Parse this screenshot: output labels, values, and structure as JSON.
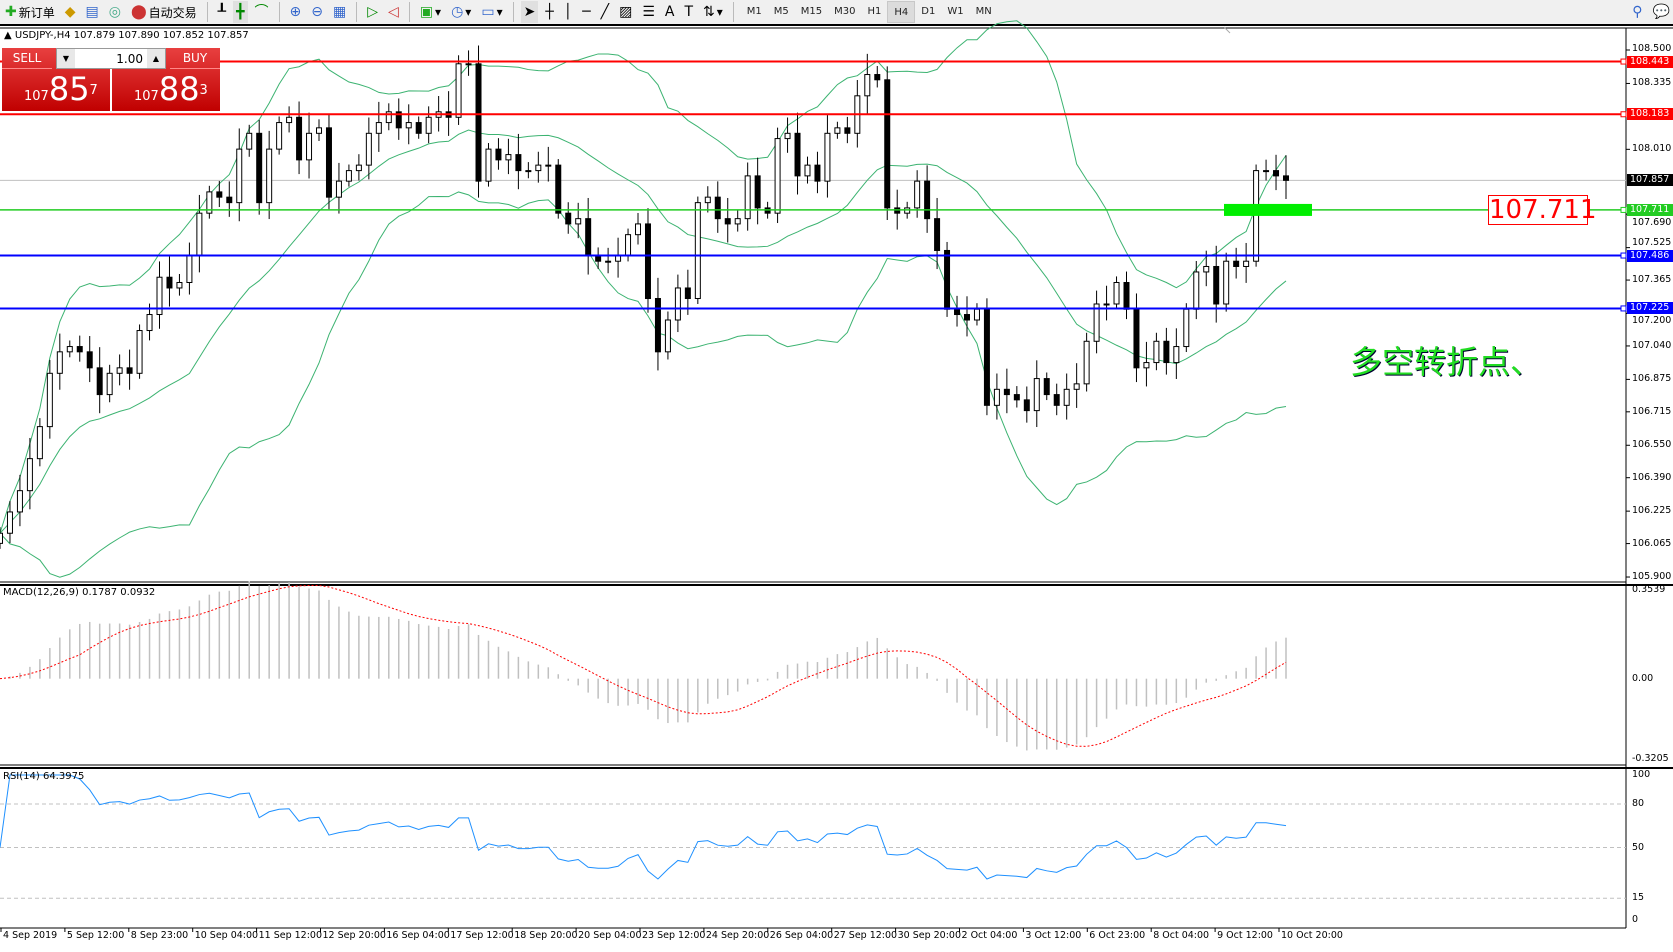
{
  "toolbar": {
    "new_order": "新订单",
    "auto_trading": "自动交易",
    "icons": [
      "new-order-icon",
      "market-watch-icon",
      "navigator-icon",
      "signals-icon",
      "auto-trading-icon",
      "bar-chart-icon",
      "candlestick-icon",
      "line-chart-icon",
      "zoom-in-icon",
      "zoom-out-icon",
      "tile-windows-icon",
      "chart-shift-icon",
      "autoscroll-icon",
      "indicators-icon",
      "periods-icon",
      "templates-icon",
      "cursor-icon",
      "crosshair-icon",
      "vertical-line-icon",
      "horizontal-line-icon",
      "trendline-icon",
      "equidistant-channel-icon",
      "fibonacci-icon",
      "text-icon",
      "text-label-icon",
      "arrows-icon"
    ],
    "timeframes": [
      "M1",
      "M5",
      "M15",
      "M30",
      "H1",
      "H4",
      "D1",
      "W1",
      "MN"
    ],
    "active_timeframe": "H4"
  },
  "chart": {
    "header": "USDJPY-,H4  107.879 107.890 107.852 107.857",
    "trade_panel": {
      "sell_label": "SELL",
      "buy_label": "BUY",
      "lot": "1.00",
      "sell_big": "107",
      "sell_main": "85",
      "sell_pip": "7",
      "buy_big": "107",
      "buy_main": "88",
      "buy_pip": "3"
    },
    "price_axis": [
      "108.500",
      "108.335",
      "108.010",
      "107.690",
      "107.525",
      "107.365",
      "107.200",
      "107.040",
      "106.875",
      "106.715",
      "106.550",
      "106.390",
      "106.225",
      "106.065",
      "105.900"
    ],
    "levels": [
      {
        "price": 108.443,
        "label": "108.443",
        "color": "#ff0000"
      },
      {
        "price": 108.183,
        "label": "108.183",
        "color": "#ff0000"
      },
      {
        "price": 107.711,
        "label": "107.711",
        "color": "#22cc22"
      },
      {
        "price": 107.486,
        "label": "107.486",
        "color": "#0000ff"
      },
      {
        "price": 107.225,
        "label": "107.225",
        "color": "#0000ff"
      }
    ],
    "bid": {
      "price": 107.857,
      "label": "107.857"
    },
    "price_box": "107.711",
    "annotation": "多空转折点、",
    "closes": [
      106.116,
      106.221,
      106.326,
      106.484,
      106.642,
      106.905,
      107.011,
      107.037,
      107.011,
      106.932,
      106.8,
      106.905,
      106.932,
      106.905,
      107.116,
      107.195,
      107.379,
      107.326,
      107.353,
      107.484,
      107.695,
      107.8,
      107.774,
      107.747,
      108.011,
      108.089,
      107.747,
      108.011,
      108.142,
      108.168,
      107.958,
      108.089,
      108.116,
      107.774,
      107.853,
      107.905,
      107.932,
      108.089,
      108.142,
      108.195,
      108.116,
      108.142,
      108.089,
      108.168,
      108.195,
      108.168,
      108.432,
      108.432,
      107.853,
      108.011,
      107.958,
      107.984,
      107.905,
      107.905,
      107.932,
      107.932,
      107.695,
      107.642,
      107.668,
      107.484,
      107.458,
      107.458,
      107.484,
      107.589,
      107.642,
      107.274,
      107.011,
      107.168,
      107.326,
      107.274,
      107.747,
      107.774,
      107.668,
      107.642,
      107.668,
      107.879,
      107.721,
      107.695,
      108.063,
      108.089,
      107.879,
      107.932,
      107.853,
      108.089,
      108.116,
      108.089,
      108.274,
      108.379,
      108.353,
      107.721,
      107.695,
      107.721,
      107.853,
      107.668,
      107.511,
      107.221,
      107.195,
      107.168,
      107.221,
      106.747,
      106.826,
      106.8,
      106.774,
      106.721,
      106.879,
      106.8,
      106.747,
      106.826,
      106.853,
      107.063,
      107.247,
      107.247,
      107.353,
      107.221,
      106.932,
      106.958,
      107.063,
      106.958,
      107.037,
      107.221,
      107.405,
      107.432,
      107.247,
      107.458,
      107.432,
      107.458,
      107.905,
      107.905,
      107.879,
      107.857
    ],
    "time_axis": [
      "4 Sep 2019",
      "5 Sep 12:00",
      "8 Sep 23:00",
      "10 Sep 04:00",
      "11 Sep 12:00",
      "12 Sep 20:00",
      "16 Sep 04:00",
      "17 Sep 12:00",
      "18 Sep 20:00",
      "20 Sep 04:00",
      "23 Sep 12:00",
      "24 Sep 20:00",
      "26 Sep 04:00",
      "27 Sep 12:00",
      "30 Sep 20:00",
      "2 Oct 04:00",
      "3 Oct 12:00",
      "6 Oct 23:00",
      "8 Oct 04:00",
      "9 Oct 12:00",
      "10 Oct 20:00"
    ]
  },
  "macd": {
    "label": "MACD(12,26,9) 0.1787 0.0932",
    "axis": [
      "0.3539",
      "0.00",
      "-0.3205"
    ],
    "range": [
      -0.3205,
      0.3539
    ]
  },
  "rsi": {
    "label": "RSI(14) 64.3975",
    "axis": [
      "100",
      "80",
      "50",
      "15",
      "0"
    ],
    "levels": [
      80,
      50,
      15
    ]
  },
  "colors": {
    "bollinger": "#3cb371",
    "macd_hist": "#c0c0c0",
    "macd_signal": "#ff0000",
    "rsi": "#1e90ff",
    "bull": "#ffffff",
    "bear": "#000000",
    "trade_red": "#d01010"
  }
}
